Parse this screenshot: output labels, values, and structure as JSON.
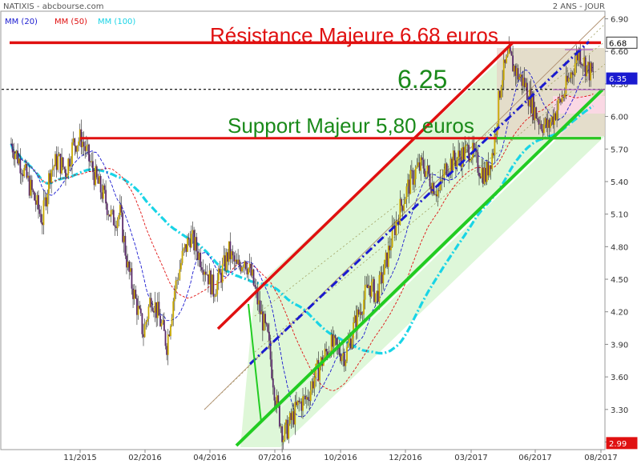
{
  "header": {
    "ticker": "NATIXIS - abcbourse.com",
    "period": "2 ANS - JOUR",
    "legend": [
      {
        "label": "MM (20)",
        "color": "#1a1ad0"
      },
      {
        "label": "MM (50)",
        "color": "#e01010"
      },
      {
        "label": "MM (100)",
        "color": "#19d4e6"
      }
    ]
  },
  "chart_data": {
    "type": "candlestick",
    "ylim": [
      2.93,
      6.97
    ],
    "y_ticks": [
      "6.90",
      "6.60",
      "6.30",
      "6.00",
      "5.70",
      "5.40",
      "5.10",
      "4.80",
      "4.50",
      "4.20",
      "3.90",
      "3.60",
      "3.30",
      "3.00"
    ],
    "x_ticks": [
      "11/2015",
      "02/2016",
      "04/2016",
      "07/2016",
      "10/2016",
      "12/2016",
      "03/2017",
      "06/2017",
      "08/2017"
    ],
    "price_labels": [
      {
        "value": "6.68",
        "bg": "#ffffff",
        "fg": "#000000",
        "border": "#333333"
      },
      {
        "value": "6.35",
        "bg": "#1a1ad0",
        "fg": "#ffffff",
        "border": "#1a1ad0"
      },
      {
        "value": "2.99",
        "bg": "#e01010",
        "fg": "#ffffff",
        "border": "#e01010"
      }
    ],
    "annotations": [
      {
        "text": "Résistance Majeure 6.68 euros",
        "color": "#e01010"
      },
      {
        "text": "6.25",
        "color": "#1a8a1a"
      },
      {
        "text": "Support Majeur 5,80 euros",
        "color": "#1a8a1a"
      }
    ],
    "series_note": "OHLC daily candles approx. Oct 2015 - Aug 2017",
    "price_path": [
      [
        0,
        5.75
      ],
      [
        8,
        5.55
      ],
      [
        16,
        5.3
      ],
      [
        24,
        5.05
      ],
      [
        30,
        5.5
      ],
      [
        36,
        5.6
      ],
      [
        42,
        5.5
      ],
      [
        48,
        5.75
      ],
      [
        54,
        5.8
      ],
      [
        60,
        5.6
      ],
      [
        66,
        5.4
      ],
      [
        72,
        5.25
      ],
      [
        78,
        5.05
      ],
      [
        84,
        5.1
      ],
      [
        90,
        4.6
      ],
      [
        96,
        4.3
      ],
      [
        102,
        4.0
      ],
      [
        108,
        4.35
      ],
      [
        114,
        4.15
      ],
      [
        120,
        3.9
      ],
      [
        126,
        4.4
      ],
      [
        132,
        4.7
      ],
      [
        138,
        4.9
      ],
      [
        144,
        4.75
      ],
      [
        150,
        4.6
      ],
      [
        156,
        4.4
      ],
      [
        162,
        4.55
      ],
      [
        168,
        4.75
      ],
      [
        174,
        4.6
      ],
      [
        180,
        4.7
      ],
      [
        186,
        4.5
      ],
      [
        192,
        4.2
      ],
      [
        198,
        3.95
      ],
      [
        204,
        3.4
      ],
      [
        210,
        3.05
      ],
      [
        216,
        3.2
      ],
      [
        222,
        3.35
      ],
      [
        228,
        3.4
      ],
      [
        234,
        3.6
      ],
      [
        240,
        3.75
      ],
      [
        246,
        3.9
      ],
      [
        252,
        3.85
      ],
      [
        258,
        3.8
      ],
      [
        264,
        4.05
      ],
      [
        270,
        4.25
      ],
      [
        276,
        4.45
      ],
      [
        282,
        4.35
      ],
      [
        288,
        4.6
      ],
      [
        294,
        4.9
      ],
      [
        300,
        5.15
      ],
      [
        306,
        5.35
      ],
      [
        312,
        5.5
      ],
      [
        318,
        5.55
      ],
      [
        324,
        5.4
      ],
      [
        330,
        5.3
      ],
      [
        336,
        5.55
      ],
      [
        342,
        5.6
      ],
      [
        348,
        5.65
      ],
      [
        354,
        5.7
      ],
      [
        360,
        5.55
      ],
      [
        366,
        5.45
      ],
      [
        372,
        5.7
      ],
      [
        378,
        6.35
      ],
      [
        384,
        6.55
      ],
      [
        390,
        6.4
      ],
      [
        396,
        6.3
      ],
      [
        402,
        6.1
      ],
      [
        408,
        5.95
      ],
      [
        414,
        5.9
      ],
      [
        420,
        6.05
      ],
      [
        426,
        6.2
      ],
      [
        432,
        6.4
      ],
      [
        438,
        6.6
      ],
      [
        444,
        6.45
      ],
      [
        450,
        6.35
      ]
    ]
  }
}
